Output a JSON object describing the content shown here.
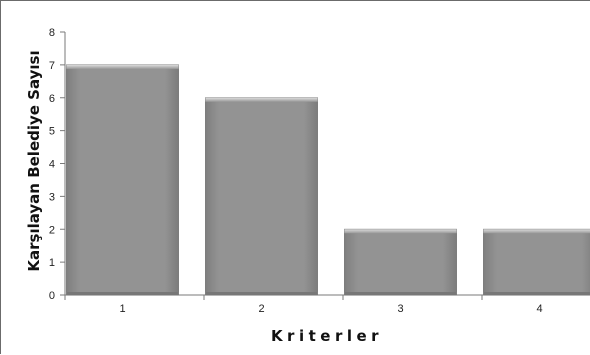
{
  "chart_data": {
    "type": "bar",
    "categories": [
      "1",
      "2",
      "3",
      "4"
    ],
    "values": [
      7,
      6,
      2,
      2
    ],
    "title": "",
    "xlabel": "Kriterler",
    "ylabel": "Karşılayan Belediye Sayısı",
    "ylim": [
      0,
      8
    ],
    "yticks": [
      0,
      1,
      2,
      3,
      4,
      5,
      6,
      7,
      8
    ],
    "grid": false,
    "legend": "none",
    "colors": {
      "bar": "#8f8f8f",
      "bar_top": "#c8c8c8",
      "bar_edge": "#6d6d6d",
      "axis": "#7a7a7a"
    }
  }
}
